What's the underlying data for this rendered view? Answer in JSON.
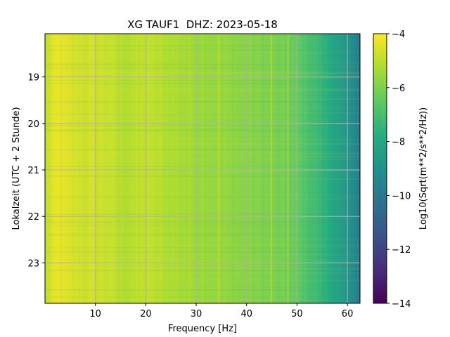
{
  "chart_data": {
    "type": "heatmap",
    "title": "XG TAUF1  DHZ: 2023-05-18",
    "xlabel": "Frequency [Hz]",
    "ylabel": "Lokalzeit (UTC + 2 Stunde)",
    "xlim": [
      0,
      62.5
    ],
    "ylim": [
      18.07,
      23.87
    ],
    "y_inverted": true,
    "xticks": [
      10,
      20,
      30,
      40,
      50,
      60
    ],
    "xtick_labels": [
      "10",
      "20",
      "30",
      "40",
      "50",
      "60"
    ],
    "yticks": [
      19,
      20,
      21,
      22,
      23
    ],
    "ytick_labels": [
      "19",
      "20",
      "21",
      "22",
      "23"
    ],
    "grid": true,
    "colormap": "viridis",
    "colorbar": {
      "label": "Log10(Sqrt(m**2/s**2/Hz))",
      "range": [
        -14,
        -4
      ],
      "ticks": [
        -4,
        -6,
        -8,
        -10,
        -12,
        -14
      ],
      "tick_labels": [
        "−4",
        "−6",
        "−8",
        "−10",
        "−12",
        "−14"
      ]
    },
    "frequency_profile": {
      "frequency_hz": [
        0,
        2.5,
        5,
        8,
        10,
        13,
        15,
        18,
        20,
        25,
        30,
        35,
        40,
        45,
        48,
        50,
        52,
        54,
        56,
        58,
        60,
        62.5
      ],
      "level_log10": [
        -4.9,
        -4.3,
        -4.6,
        -4.7,
        -4.7,
        -4.8,
        -5.1,
        -5.0,
        -4.9,
        -5.2,
        -5.4,
        -5.6,
        -5.8,
        -6.0,
        -6.2,
        -6.4,
        -6.8,
        -7.2,
        -7.7,
        -8.2,
        -8.8,
        -9.6
      ]
    },
    "spectral_lines": [
      {
        "frequency_hz": 34.5,
        "level_log10": -4.9
      },
      {
        "frequency_hz": 44.9,
        "level_log10": -5.0
      },
      {
        "frequency_hz": 48.2,
        "level_log10": -5.2
      }
    ]
  }
}
